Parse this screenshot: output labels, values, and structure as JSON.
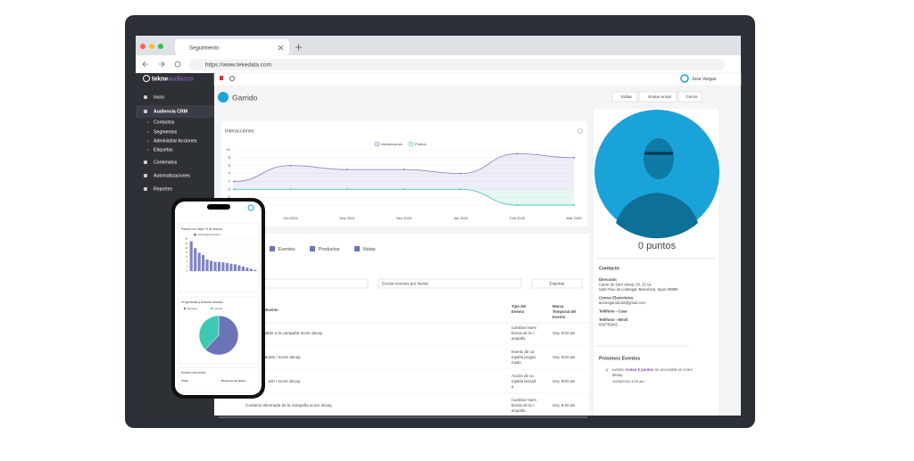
{
  "browser": {
    "tab": "Seguimiento",
    "url": "https://www.tekedata.com"
  },
  "logo": {
    "brand": "tekne",
    "suffix": "audience"
  },
  "sidebar": {
    "items": [
      "Inicio",
      "Audiencia CRM",
      "Contactos",
      "Segmentos",
      "Administrar Acciones",
      "Etiquetas",
      "Contenidos",
      "Automatizaciones",
      "Reportes"
    ]
  },
  "topbar": {
    "user": "Jose Vargas"
  },
  "header": {
    "title": "Garrido",
    "buttons": [
      "Editar",
      "Enviar email",
      "Cerrar"
    ]
  },
  "tabs": [
    "Eventos",
    "Productos",
    "Notas"
  ],
  "filters": {
    "exclude": "Excluir eventos por fuente",
    "export": "Exportar"
  },
  "events": {
    "headers": [
      [
        "del Evento"
      ],
      [
        "Tipo del",
        "Evento"
      ],
      [
        "Marca",
        "Temporal del",
        "Evento"
      ]
    ],
    "rows": [
      {
        "name": "añadido a la campaña score decay",
        "type": [
          "Cambiar miem",
          "bresía de la c",
          "ampaña"
        ],
        "time": "Hoy, 8:04 am"
      },
      {
        "name": "tiunts / score decay",
        "type": [
          "Evento de ca",
          "mpaña progra",
          "mado"
        ],
        "time": "Hoy, 8:04 am"
      },
      {
        "name": "100 / score decay",
        "type": [
          "Acción de ca",
          "mpaña lanzad",
          "a"
        ],
        "time": "Hoy, 8:04 am"
      },
      {
        "name": "Contacto eliminado de la campaña score decay",
        "type": [
          "Cambiar miem",
          "bresía de la c",
          "ampaña"
        ],
        "time": "Hoy, 8:43 am"
      }
    ]
  },
  "profile": {
    "points": "0 puntos",
    "contact_title": "Contacto",
    "fields": [
      {
        "label": "Dirección",
        "lines": [
          "Carrer de Sant Josep, 29, 10 1a",
          "Sant Feliu de Llobregat, Barcelona, Spain 08980"
        ]
      },
      {
        "label": "Correo Electrónico",
        "lines": [
          "ancievgarrido22@gmail.com"
        ]
      },
      {
        "label": "Teléfono - Casa",
        "lines": []
      },
      {
        "label": "Teléfono - Móvil",
        "lines": [
          "638730943"
        ]
      }
    ],
    "upcoming_title": "Próximos Eventos",
    "upcoming": {
      "before": "evento",
      "highlight": "restan 5 puntos",
      "after": "se accionará en score",
      "line2": "decay",
      "date": "10/06/2024 3:00 am"
    }
  },
  "phone": {
    "table_title": "Emails más leídos",
    "table_headers": [
      "Título",
      "Recuento de leídos"
    ]
  },
  "chart_data": [
    {
      "type": "line",
      "title": "Interacciones",
      "categories": [
        null,
        "Oct 2024",
        "Nov 2024",
        "Dec 2024",
        "Jan 2025",
        "Feb 2025",
        "Mar 2025"
      ],
      "series": [
        {
          "name": "Interacciones",
          "color": "#8c88c9",
          "values": [
            2,
            6,
            5,
            5,
            4,
            9,
            8
          ]
        },
        {
          "name": "Puntos",
          "color": "#4fc9b0",
          "values": [
            0,
            0,
            0,
            0,
            0,
            -4,
            -4
          ]
        }
      ],
      "ylim": [
        -4,
        10
      ],
      "yticks": [
        10,
        8,
        6,
        4,
        2,
        0,
        -2,
        -4
      ],
      "grid": true
    },
    {
      "type": "bar",
      "title": "Países con mejor % de lectura",
      "categories": [
        null,
        null,
        null,
        null,
        null,
        null,
        null,
        null,
        null,
        null,
        null,
        null,
        null,
        null,
        null,
        null,
        null
      ],
      "series": [
        {
          "name": "Porcentaje de lectura",
          "color": "#7d83c4",
          "values": [
            13,
            10,
            8,
            7,
            5,
            4.5,
            4,
            4,
            3.8,
            3.5,
            3.2,
            3,
            2.5,
            2,
            1.5,
            1,
            0.5
          ]
        }
      ],
      "ylim": [
        0,
        14
      ],
      "yticks": [
        0,
        2,
        4,
        6,
        8,
        10,
        12,
        14
      ],
      "grid": true
    },
    {
      "type": "pie",
      "title": "% Aperturas y lecturas enviado",
      "categories": [
        "Aperturas",
        "Lecturas"
      ],
      "values": [
        62,
        38
      ],
      "colors": [
        "#6b74b7",
        "#3ec9b4"
      ]
    }
  ]
}
